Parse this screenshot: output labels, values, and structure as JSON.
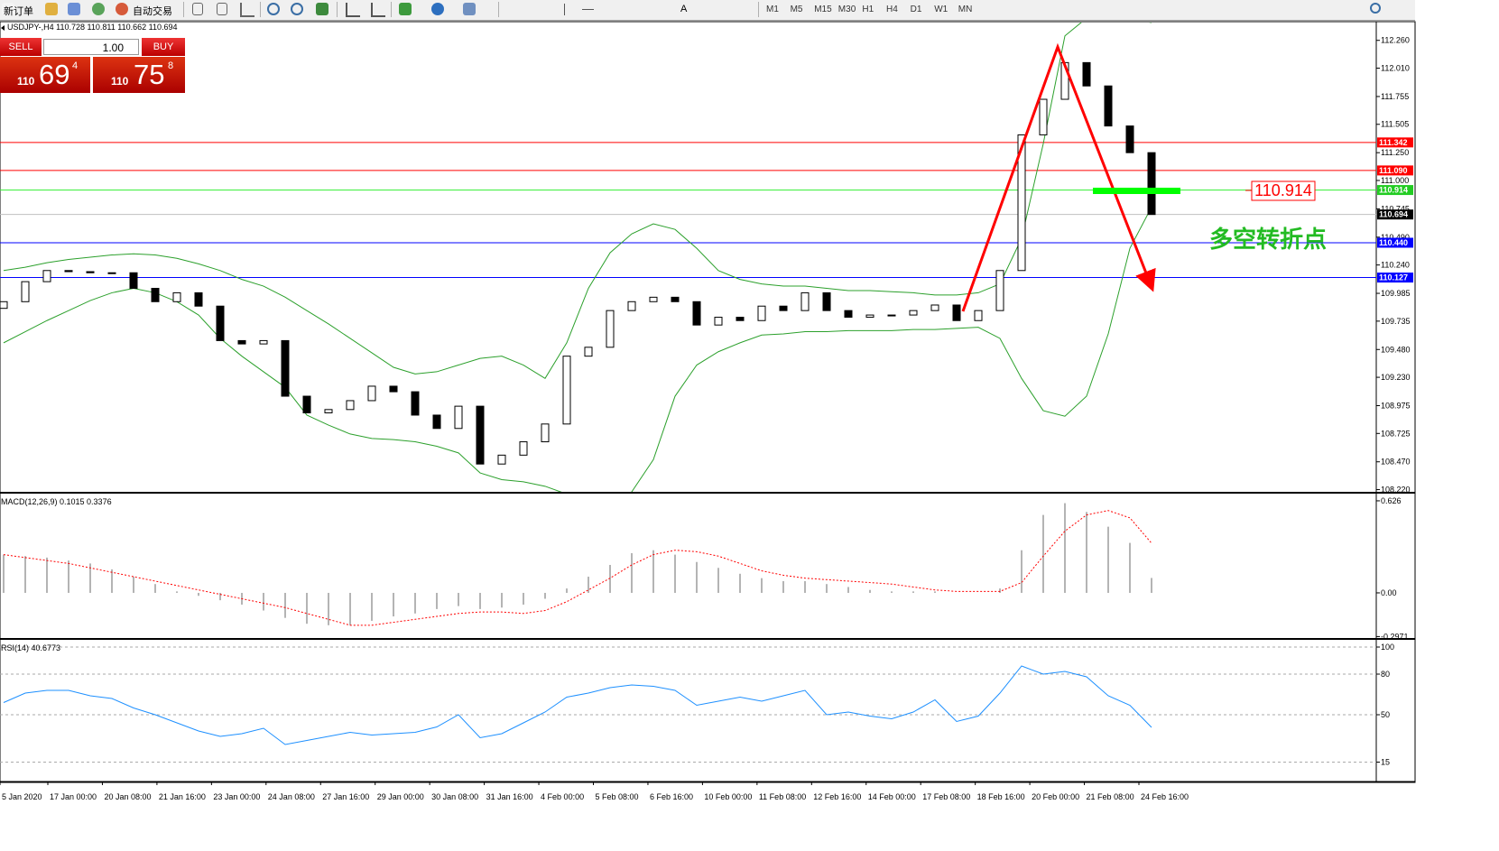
{
  "toolbar": {
    "new_order": "新订单",
    "auto_trading": "自动交易",
    "timeframes": [
      "M1",
      "M5",
      "M15",
      "M30",
      "H1",
      "H4",
      "D1",
      "W1",
      "MN"
    ]
  },
  "trade_panel": {
    "sell": "SELL",
    "buy": "BUY",
    "lot": "1.00",
    "sell_big": "110",
    "sell_digits": "69",
    "sell_small": "4",
    "buy_big": "110",
    "buy_digits": "75",
    "buy_small": "8"
  },
  "time_axis": {
    "labels": [
      "5 Jan 2020",
      "17 Jan 00:00",
      "20 Jan 08:00",
      "21 Jan 16:00",
      "23 Jan 00:00",
      "24 Jan 08:00",
      "27 Jan 16:00",
      "29 Jan 00:00",
      "30 Jan 08:00",
      "31 Jan 16:00",
      "4 Feb 00:00",
      "5 Feb 08:00",
      "6 Feb 16:00",
      "10 Feb 00:00",
      "11 Feb 08:00",
      "12 Feb 16:00",
      "14 Feb 00:00",
      "17 Feb 08:00",
      "18 Feb 16:00",
      "20 Feb 00:00",
      "21 Feb 08:00",
      "24 Feb 16:00"
    ]
  },
  "chart_data": [
    {
      "type": "candlestick",
      "title": "USDJPY-,H4 110.728 110.811 110.662 110.694",
      "open": [
        109.85,
        109.91,
        110.09,
        110.19,
        110.18,
        110.17,
        110.17,
        110.03,
        109.91,
        109.99,
        109.87,
        109.56,
        109.53,
        109.56,
        109.06,
        108.91,
        108.94,
        109.02,
        109.15,
        109.1,
        108.89,
        108.77,
        108.97,
        108.45,
        108.53,
        108.65,
        108.81,
        109.42,
        109.5,
        109.83,
        109.91,
        109.95,
        109.91,
        109.7,
        109.77,
        109.74,
        109.87,
        109.83,
        109.99,
        109.83,
        109.77,
        109.79,
        109.79,
        109.83,
        109.88,
        109.74,
        109.83,
        110.19,
        111.41,
        111.73,
        112.06,
        111.85,
        111.49,
        111.25
      ],
      "close": [
        109.91,
        110.09,
        110.19,
        110.18,
        110.17,
        110.17,
        110.03,
        109.91,
        109.99,
        109.87,
        109.56,
        109.53,
        109.56,
        109.06,
        108.91,
        108.94,
        109.02,
        109.15,
        109.1,
        108.89,
        108.77,
        108.97,
        108.45,
        108.53,
        108.65,
        108.81,
        109.42,
        109.5,
        109.83,
        109.91,
        109.95,
        109.91,
        109.7,
        109.77,
        109.74,
        109.87,
        109.83,
        109.99,
        109.83,
        109.77,
        109.79,
        109.79,
        109.83,
        109.88,
        109.74,
        109.83,
        110.19,
        111.41,
        111.73,
        112.06,
        111.85,
        111.49,
        111.25,
        110.694
      ],
      "upper_band": [
        110.19,
        110.22,
        110.26,
        110.29,
        110.31,
        110.33,
        110.34,
        110.33,
        110.3,
        110.25,
        110.19,
        110.11,
        110.05,
        109.95,
        109.83,
        109.71,
        109.58,
        109.45,
        109.32,
        109.26,
        109.28,
        109.34,
        109.4,
        109.42,
        109.34,
        109.22,
        109.54,
        110.03,
        110.35,
        110.52,
        110.61,
        110.56,
        110.39,
        110.19,
        110.11,
        110.07,
        110.05,
        110.05,
        110.03,
        110.01,
        110.01,
        110.0,
        109.99,
        109.97,
        109.97,
        109.99,
        110.07,
        110.48,
        111.33,
        112.3,
        112.46,
        112.5,
        112.45,
        112.42
      ],
      "lower_band": [
        109.54,
        109.64,
        109.74,
        109.83,
        109.92,
        109.99,
        110.03,
        109.99,
        109.91,
        109.79,
        109.58,
        109.42,
        109.28,
        109.14,
        108.89,
        108.8,
        108.72,
        108.68,
        108.67,
        108.65,
        108.61,
        108.55,
        108.37,
        108.31,
        108.29,
        108.25,
        108.18,
        107.92,
        108.0,
        108.2,
        108.49,
        109.06,
        109.34,
        109.46,
        109.54,
        109.61,
        109.62,
        109.64,
        109.64,
        109.65,
        109.65,
        109.65,
        109.66,
        109.66,
        109.67,
        109.68,
        109.58,
        109.22,
        108.93,
        108.88,
        109.06,
        109.62,
        110.39,
        110.76
      ],
      "band_color": "#2ca02c",
      "ylim": [
        108.2,
        112.42
      ],
      "yticks": [
        {
          "value": 112.26,
          "label": "112.260"
        },
        {
          "value": 112.01,
          "label": "112.010"
        },
        111.755,
        {
          "value": 111.505,
          "label": "111.505"
        },
        {
          "value": 111.25,
          "label": "111.250"
        },
        {
          "value": 111,
          "label": "111.000"
        },
        110.745,
        {
          "value": 110.49,
          "label": "110.490"
        },
        {
          "value": 110.24,
          "label": "110.240"
        },
        109.985,
        109.735,
        {
          "value": 109.48,
          "label": "109.480"
        },
        {
          "value": 109.23,
          "label": "109.230"
        },
        108.975,
        108.725,
        {
          "value": 108.47,
          "label": "108.470"
        },
        {
          "value": 108.22,
          "label": "108.220"
        }
      ],
      "levels": [
        {
          "value": 111.342,
          "color": "#ff0000",
          "box": "#ff0000"
        },
        {
          "value": 111.09,
          "label": "111.090",
          "color": "#ff0000",
          "box": "#ff0000"
        },
        {
          "value": 110.914,
          "color": "#33ee33",
          "box": "#22cc22"
        },
        {
          "value": 110.694,
          "color": "#c0c0c0",
          "box": "#000000"
        },
        {
          "value": 110.44,
          "label": "110.440",
          "color": "#0000ff",
          "box": "#0000ff"
        },
        {
          "value": 110.127,
          "color": "#0000ff",
          "box": "#0000ff"
        }
      ],
      "annotation": "多空转折点"
    },
    {
      "type": "macd",
      "title": "MACD(12,26,9) 0.1015 0.3376",
      "histogram": [
        0.26,
        0.25,
        0.24,
        0.22,
        0.2,
        0.16,
        0.11,
        0.06,
        0.01,
        -0.02,
        -0.05,
        -0.08,
        -0.12,
        -0.17,
        -0.21,
        -0.22,
        -0.22,
        -0.19,
        -0.16,
        -0.14,
        -0.11,
        -0.09,
        -0.11,
        -0.1,
        -0.08,
        -0.04,
        0.03,
        0.11,
        0.19,
        0.27,
        0.29,
        0.26,
        0.21,
        0.17,
        0.13,
        0.1,
        0.08,
        0.08,
        0.06,
        0.04,
        0.02,
        0.01,
        0.01,
        0.01,
        0,
        0,
        0.03,
        0.29,
        0.53,
        0.61,
        0.55,
        0.45,
        0.34,
        0.1015
      ],
      "signal": [
        0.26,
        0.24,
        0.22,
        0.2,
        0.17,
        0.14,
        0.11,
        0.08,
        0.05,
        0.02,
        -0.01,
        -0.04,
        -0.07,
        -0.1,
        -0.14,
        -0.18,
        -0.22,
        -0.22,
        -0.2,
        -0.18,
        -0.16,
        -0.14,
        -0.13,
        -0.13,
        -0.14,
        -0.12,
        -0.06,
        0.02,
        0.1,
        0.19,
        0.26,
        0.29,
        0.28,
        0.25,
        0.2,
        0.15,
        0.12,
        0.1,
        0.09,
        0.08,
        0.07,
        0.06,
        0.04,
        0.02,
        0.01,
        0.01,
        0.01,
        0.07,
        0.25,
        0.42,
        0.53,
        0.56,
        0.51,
        0.3376
      ],
      "histogram_color": "#b4b4b4",
      "signal_color": "#ff0000",
      "ylim": [
        -0.307,
        0.638
      ],
      "yticks": [
        0.626,
        {
          "value": 0,
          "label": "0.00"
        },
        -0.2971
      ]
    },
    {
      "type": "line",
      "title": "RSI(14) 40.6773",
      "values": [
        59,
        66,
        68,
        68,
        64,
        62,
        55,
        50,
        44,
        38,
        34,
        36,
        40,
        28,
        31,
        34,
        37,
        35,
        36,
        37,
        41,
        50,
        33,
        36,
        44,
        52,
        63,
        66,
        70,
        72,
        71,
        68,
        57,
        60,
        63,
        60,
        64,
        68,
        50,
        52,
        49,
        47,
        52,
        61,
        45,
        49,
        66,
        86,
        80,
        82,
        78,
        64,
        57,
        40.6773
      ],
      "color": "#1e90ff",
      "grid": true,
      "ylim": [
        2,
        104
      ],
      "yticks": [
        100,
        80,
        50,
        15
      ]
    }
  ]
}
